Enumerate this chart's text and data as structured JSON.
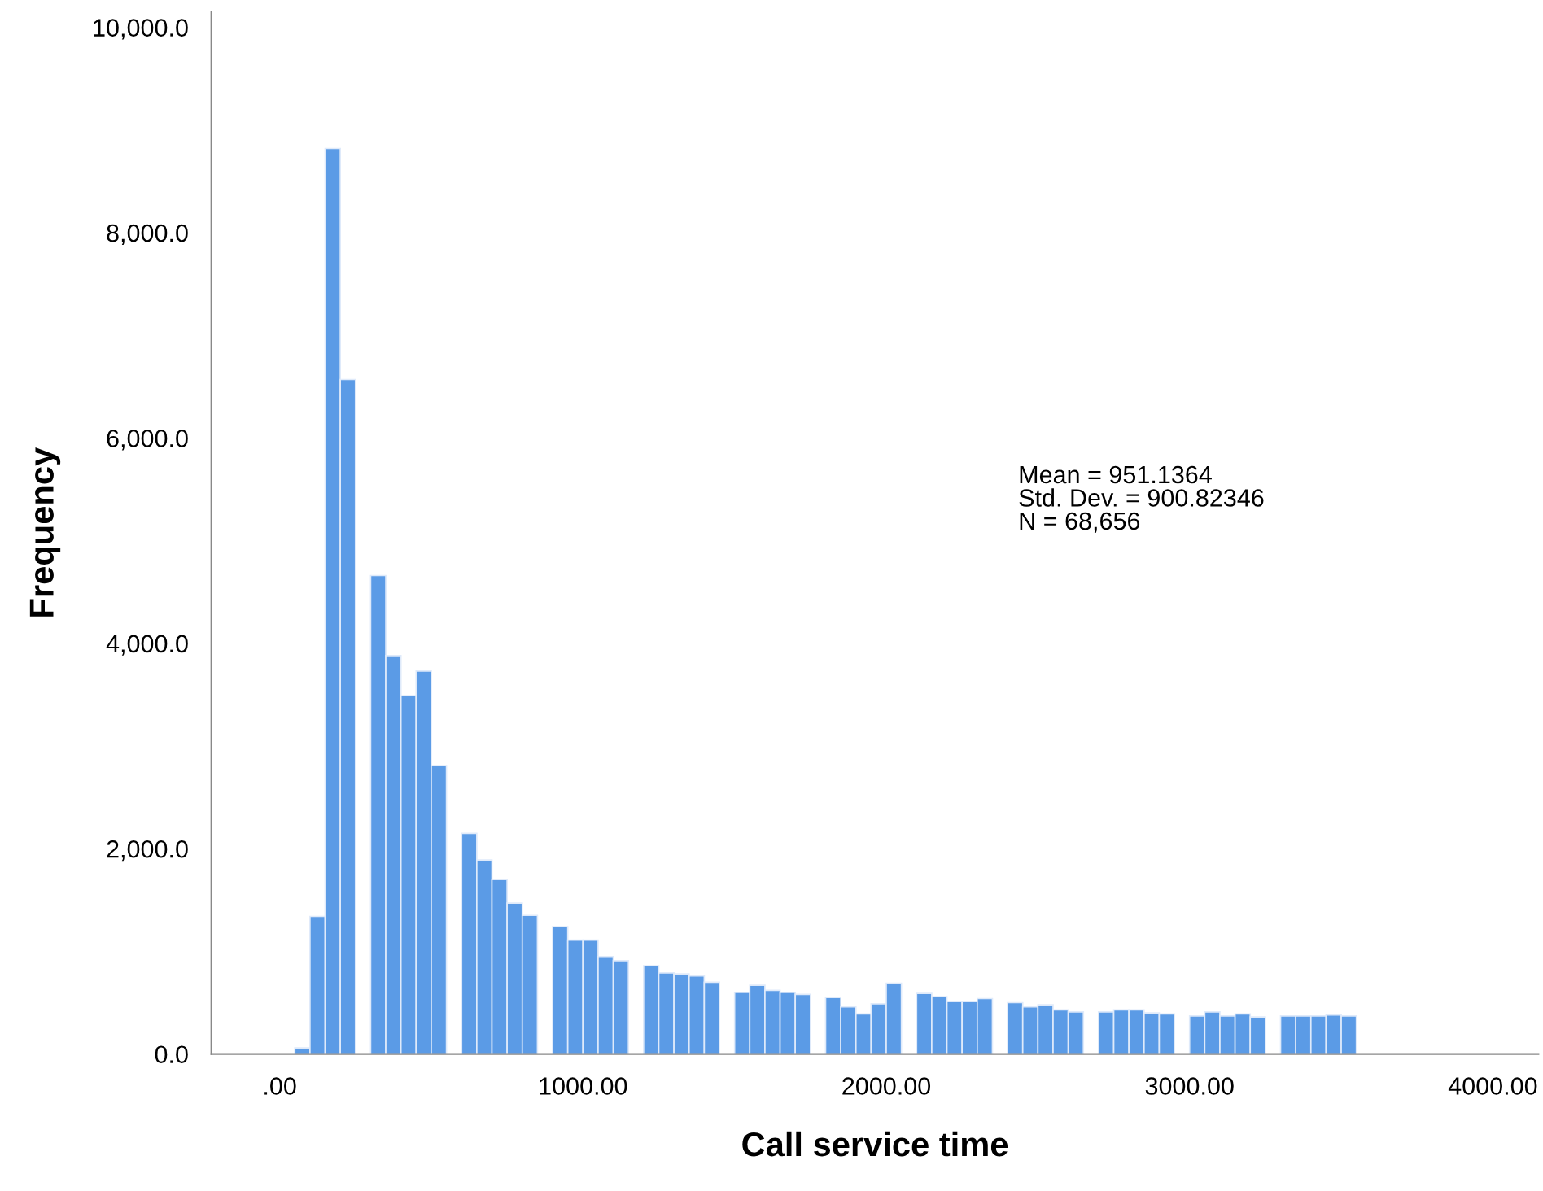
{
  "chart_data": {
    "type": "histogram",
    "xlabel": "Call service time",
    "ylabel": "Frequency",
    "bins": [
      50,
      100,
      150,
      200,
      250,
      300,
      350,
      400,
      450,
      500,
      550,
      600,
      650,
      700,
      750,
      800,
      850,
      900,
      950,
      1000,
      1050,
      1100,
      1150,
      1200,
      1250,
      1300,
      1350,
      1400,
      1450,
      1500,
      1550,
      1600,
      1650,
      1700,
      1750,
      1800,
      1850,
      1900,
      1950,
      2000,
      2050,
      2100,
      2150,
      2200,
      2250,
      2300,
      2350,
      2400,
      2450,
      2500,
      2550,
      2600,
      2650,
      2700,
      2750,
      2800,
      2850,
      2900,
      2950,
      3000,
      3050,
      3100,
      3150,
      3200,
      3250,
      3300,
      3350,
      3400,
      3450,
      3500,
      3550
    ],
    "values": [
      60,
      1340,
      8820,
      6570,
      0,
      4660,
      3880,
      3490,
      3730,
      2810,
      0,
      2150,
      1890,
      1700,
      1470,
      1350,
      0,
      1240,
      1110,
      1110,
      950,
      910,
      0,
      860,
      790,
      780,
      760,
      700,
      0,
      600,
      670,
      620,
      600,
      580,
      0,
      550,
      460,
      390,
      490,
      690,
      0,
      590,
      560,
      510,
      510,
      540,
      0,
      500,
      460,
      480,
      430,
      410,
      0,
      410,
      430,
      430,
      400,
      390,
      0,
      370,
      410,
      370,
      390,
      360,
      0,
      370,
      370,
      370,
      380,
      370
    ],
    "color": "#5b9be6",
    "xlim": [
      -225,
      4150
    ],
    "ylim": [
      0,
      10150
    ],
    "xticks": [
      {
        "value": 0,
        "label": ".00"
      },
      {
        "value": 1000,
        "label": "1000.00"
      },
      {
        "value": 2000,
        "label": "2000.00"
      },
      {
        "value": 3000,
        "label": "3000.00"
      },
      {
        "value": 4000,
        "label": "4000.00"
      }
    ],
    "yticks": [
      {
        "value": 0,
        "label": "0.0"
      },
      {
        "value": 2000,
        "label": "2,000.0"
      },
      {
        "value": 4000,
        "label": "4,000.0"
      },
      {
        "value": 6000,
        "label": "6,000.0"
      },
      {
        "value": 8000,
        "label": "8,000.0"
      },
      {
        "value": 10000,
        "label": "10,000.0"
      }
    ],
    "annotations": [
      "Mean = 951.1364\nStd. Dev. = 900.82346\nN = 68,656"
    ],
    "grid": false
  }
}
